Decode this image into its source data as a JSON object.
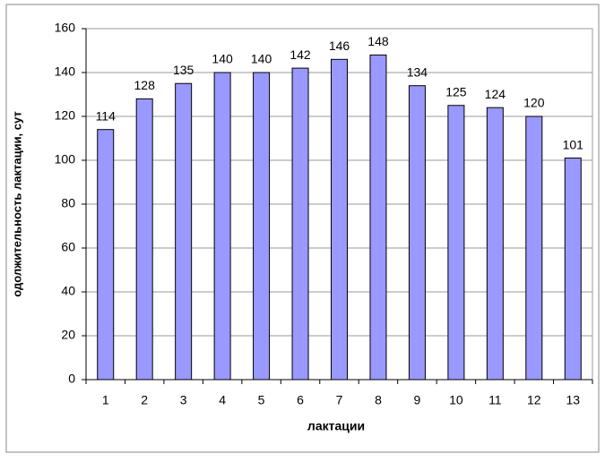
{
  "chart_data": {
    "type": "bar",
    "y_label": "одолжительность лактации, сут",
    "x_label": "лактации",
    "categories": [
      "1",
      "2",
      "3",
      "4",
      "5",
      "6",
      "7",
      "8",
      "9",
      "10",
      "11",
      "12",
      "13"
    ],
    "values": [
      114,
      128,
      135,
      140,
      140,
      142,
      146,
      148,
      134,
      125,
      124,
      120,
      101
    ],
    "color": "#9999ff",
    "ylim": [
      0,
      160
    ],
    "yticks": [
      0,
      20,
      40,
      60,
      80,
      100,
      120,
      140,
      160
    ],
    "grid": true
  }
}
